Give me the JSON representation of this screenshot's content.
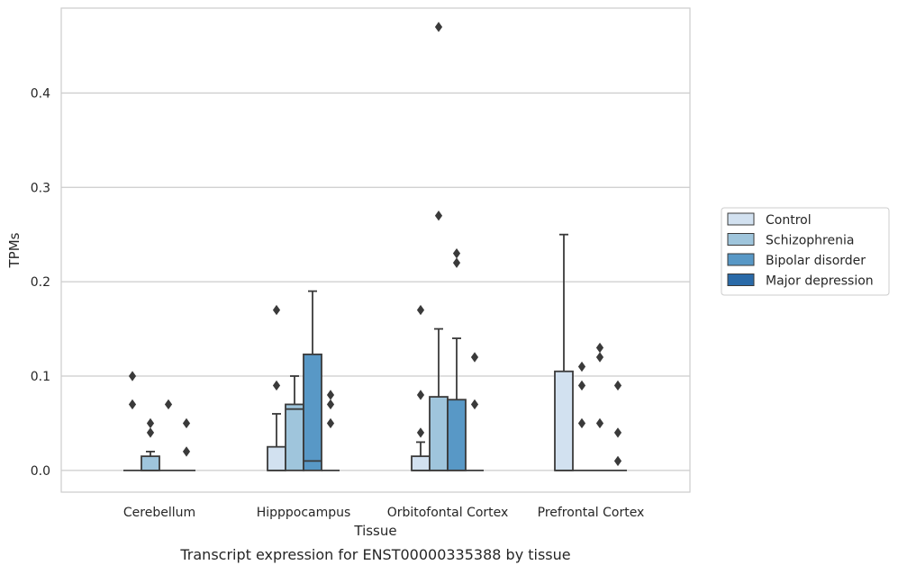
{
  "caption": "Transcript expression for ENST00000335388 by tissue",
  "colors": {
    "Control": "#d2e1f0",
    "Schizophrenia": "#9fc5dc",
    "Bipolar disorder": "#5898c6",
    "Major depression": "#2a6aa8",
    "edge": "#3a3a3a",
    "grid": "#cccccc",
    "frame": "#cccccc"
  },
  "chart_data": {
    "type": "box",
    "xlabel": "Tissue",
    "ylabel": "TPMs",
    "ylim": [
      -0.023,
      0.49
    ],
    "yticks": [
      0.0,
      0.1,
      0.2,
      0.3,
      0.4
    ],
    "ytick_labels": [
      "0.0",
      "0.1",
      "0.2",
      "0.3",
      "0.4"
    ],
    "grid": "horizontal",
    "legend_position": "outside-right",
    "categories": [
      "Cerebellum",
      "Hipppocampus",
      "Orbitofontal Cortex",
      "Prefrontal Cortex"
    ],
    "series": [
      {
        "name": "Control",
        "boxes": [
          {
            "q1": 0,
            "median": 0,
            "q3": 0,
            "whisker_low": 0,
            "whisker_high": 0,
            "outliers": [
              0.1,
              0.07
            ]
          },
          {
            "q1": 0,
            "median": 0,
            "q3": 0.025,
            "whisker_low": 0,
            "whisker_high": 0.06,
            "outliers": [
              0.17,
              0.09
            ]
          },
          {
            "q1": 0,
            "median": 0,
            "q3": 0.015,
            "whisker_low": 0,
            "whisker_high": 0.03,
            "outliers": [
              0.17,
              0.08,
              0.04
            ]
          },
          {
            "q1": 0,
            "median": 0,
            "q3": 0.105,
            "whisker_low": 0,
            "whisker_high": 0.25,
            "outliers": []
          }
        ]
      },
      {
        "name": "Schizophrenia",
        "boxes": [
          {
            "q1": 0,
            "median": 0,
            "q3": 0.015,
            "whisker_low": 0,
            "whisker_high": 0.02,
            "outliers": [
              0.05,
              0.04
            ]
          },
          {
            "q1": 0,
            "median": 0.065,
            "q3": 0.07,
            "whisker_low": 0,
            "whisker_high": 0.1,
            "outliers": []
          },
          {
            "q1": 0,
            "median": 0,
            "q3": 0.078,
            "whisker_low": 0,
            "whisker_high": 0.15,
            "outliers": [
              0.47,
              0.27
            ]
          },
          {
            "q1": 0,
            "median": 0,
            "q3": 0,
            "whisker_low": 0,
            "whisker_high": 0,
            "outliers": [
              0.11,
              0.09,
              0.05
            ]
          }
        ]
      },
      {
        "name": "Bipolar disorder",
        "boxes": [
          {
            "q1": 0,
            "median": 0,
            "q3": 0,
            "whisker_low": 0,
            "whisker_high": 0,
            "outliers": [
              0.07
            ]
          },
          {
            "q1": 0,
            "median": 0.01,
            "q3": 0.123,
            "whisker_low": 0,
            "whisker_high": 0.19,
            "outliers": []
          },
          {
            "q1": 0,
            "median": 0,
            "q3": 0.075,
            "whisker_low": 0,
            "whisker_high": 0.14,
            "outliers": [
              0.23,
              0.22
            ]
          },
          {
            "q1": 0,
            "median": 0,
            "q3": 0,
            "whisker_low": 0,
            "whisker_high": 0,
            "outliers": [
              0.13,
              0.12,
              0.05
            ]
          }
        ]
      },
      {
        "name": "Major depression",
        "boxes": [
          {
            "q1": 0,
            "median": 0,
            "q3": 0,
            "whisker_low": 0,
            "whisker_high": 0,
            "outliers": [
              0.05,
              0.02
            ]
          },
          {
            "q1": 0,
            "median": 0,
            "q3": 0,
            "whisker_low": 0,
            "whisker_high": 0,
            "outliers": [
              0.08,
              0.07,
              0.05
            ]
          },
          {
            "q1": 0,
            "median": 0,
            "q3": 0,
            "whisker_low": 0,
            "whisker_high": 0,
            "outliers": [
              0.12,
              0.07
            ]
          },
          {
            "q1": 0,
            "median": 0,
            "q3": 0,
            "whisker_low": 0,
            "whisker_high": 0,
            "outliers": [
              0.09,
              0.04,
              0.01
            ]
          }
        ]
      }
    ]
  }
}
